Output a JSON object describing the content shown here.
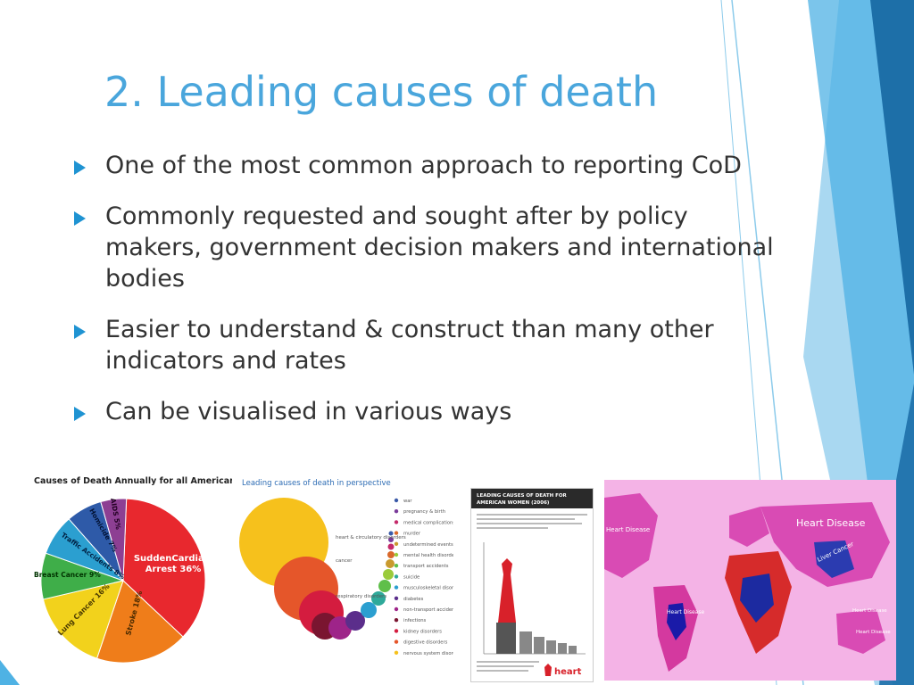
{
  "slide": {
    "title": "2. Leading causes of death",
    "bullets": [
      "One of the most common approach to reporting CoD",
      "Commonly requested and sought after by policy makers, government decision makers and international bodies",
      "Easier to understand & construct than many other indicators and rates",
      "Can be visualised in various ways"
    ]
  },
  "colors": {
    "title": "#4aa6dc",
    "bullet_arrow": "#1f93d2",
    "body_text": "#333333"
  },
  "images": {
    "pie": {
      "title": "Causes of Death Annually for all Americans",
      "slices": [
        {
          "label": "SuddenCardiac Arrest 36%",
          "value": 36,
          "color": "#e8282e"
        },
        {
          "label": "Stroke 18%",
          "value": 18,
          "color": "#ef7d1a"
        },
        {
          "label": "Lung Cancer 16%",
          "value": 16,
          "color": "#f2d21c"
        },
        {
          "label": "Breast Cancer 9%",
          "value": 9,
          "color": "#3fae49"
        },
        {
          "label": "Traffic Accidents 8%",
          "value": 8,
          "color": "#2b9fd0"
        },
        {
          "label": "Homicide 7%",
          "value": 7,
          "color": "#2e5aa8"
        },
        {
          "label": "AIDS 5%",
          "value": 5,
          "color": "#8d3f93"
        }
      ]
    },
    "bubbles": {
      "title": "Leading causes of death in perspective",
      "left_labels": [
        "heart & circulatory disorders",
        "cancer",
        "respiratory disorders"
      ],
      "right_labels": [
        "war",
        "pregnancy & birth",
        "medical complications",
        "murder",
        "undetermined events",
        "mental health disorders",
        "transport accidents",
        "suicide",
        "musculoskeletal disorders",
        "diabetes",
        "non-transport accidents",
        "infections",
        "kidney disorders",
        "digestive disorders",
        "nervous system disorders"
      ]
    },
    "poster": {
      "title": "LEADING CAUSES OF DEATH FOR AMERICAN WOMEN (2006)",
      "brand": "heart"
    },
    "map": {
      "labels": [
        "Heart Disease",
        "Heart Disease",
        "Liver Cancer",
        "Heart Disease",
        "Heart Disease",
        "Heart Disease"
      ]
    }
  }
}
